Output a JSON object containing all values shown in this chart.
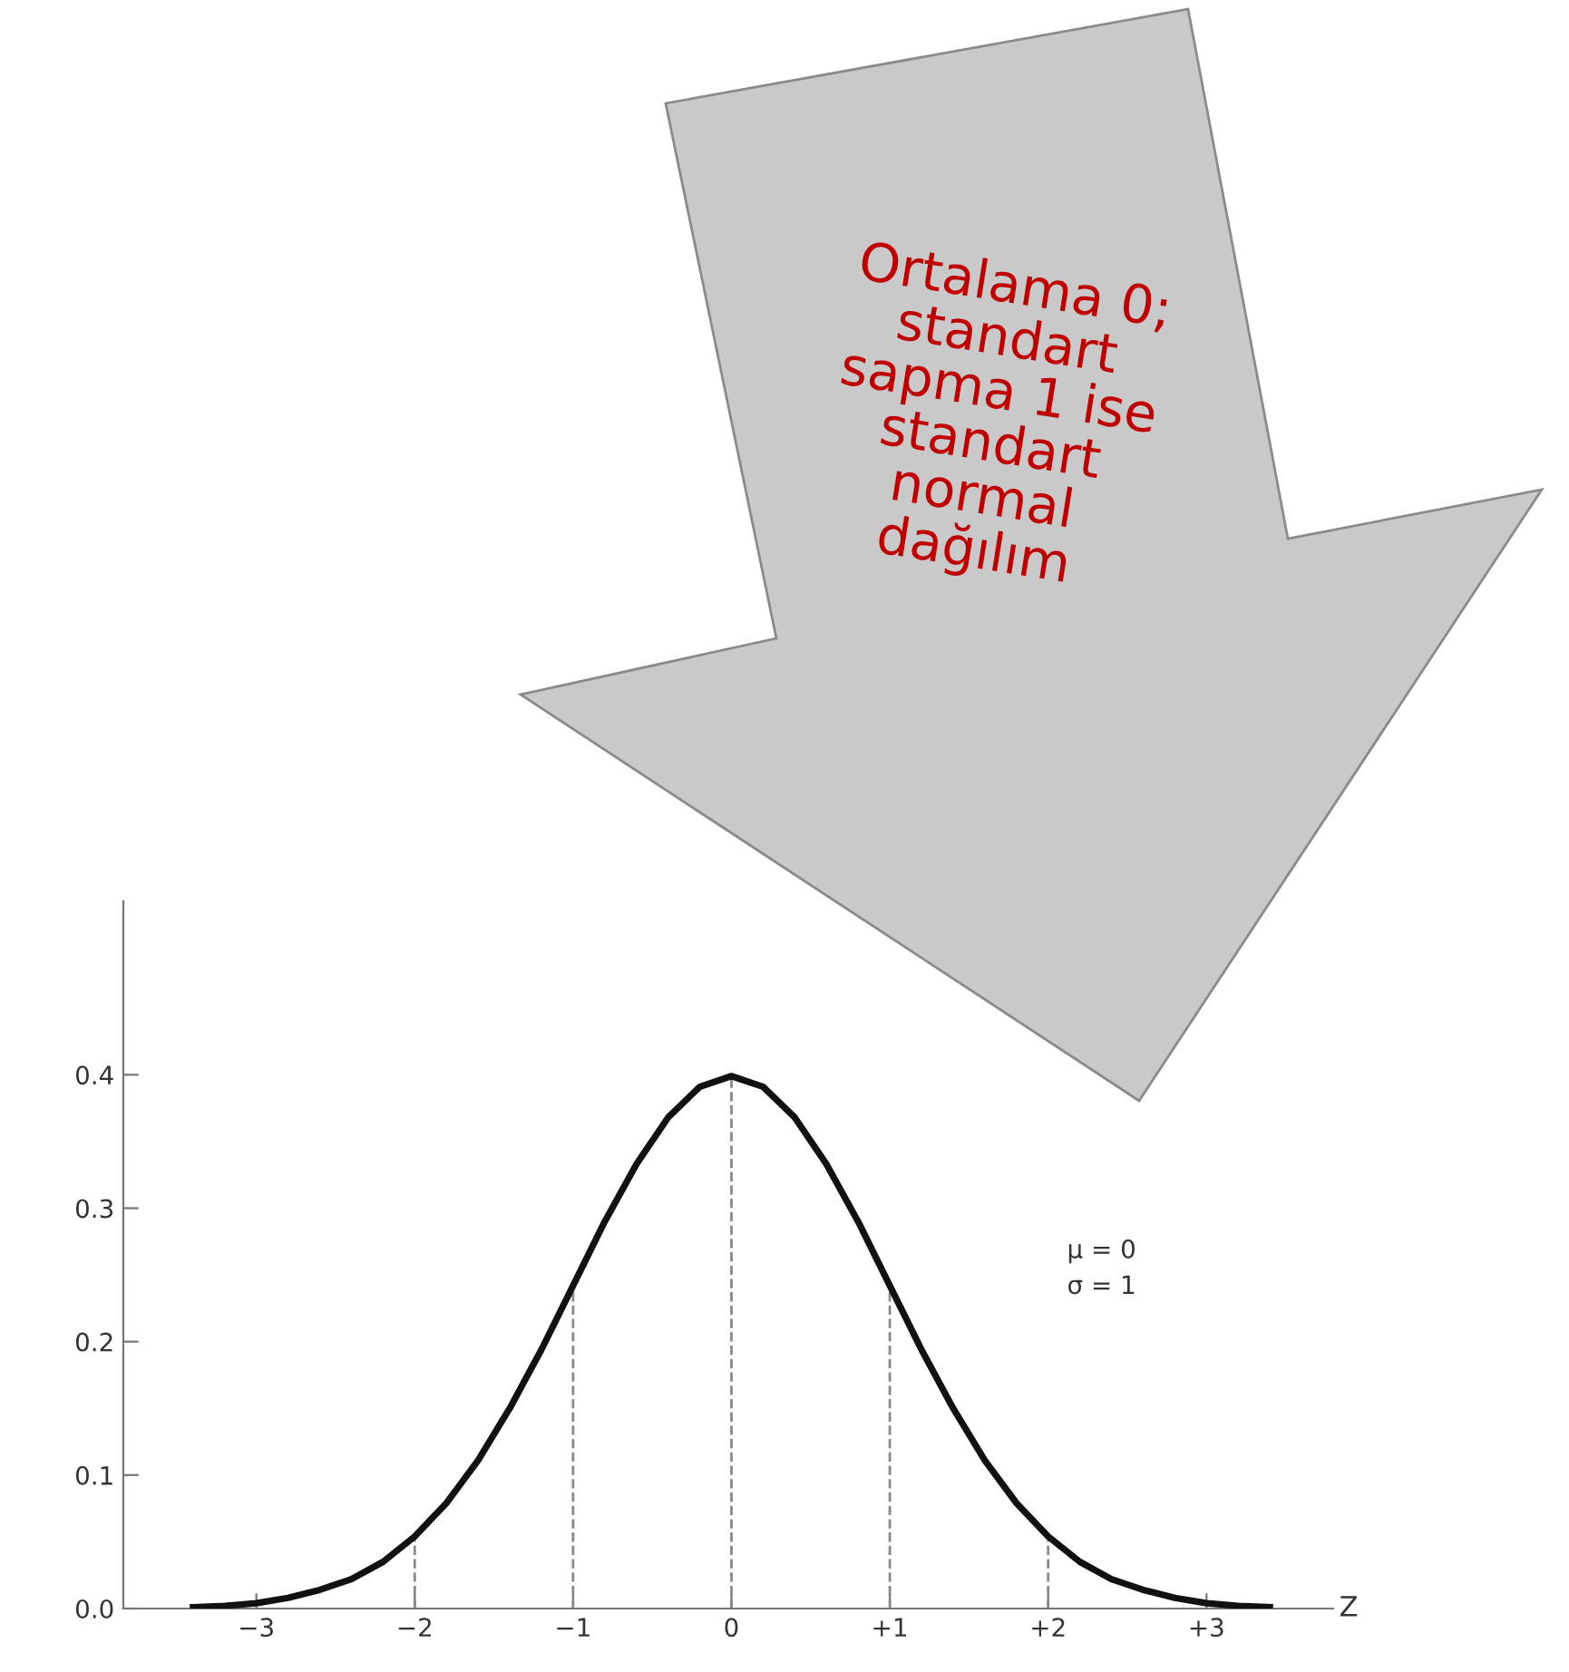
{
  "chart_data": {
    "type": "line",
    "xlabel": "Z",
    "x": [
      -3.4,
      -3.2,
      -3.0,
      -2.8,
      -2.6,
      -2.4,
      -2.2,
      -2.0,
      -1.8,
      -1.6,
      -1.4,
      -1.2,
      -1.0,
      -0.8,
      -0.6,
      -0.4,
      -0.2,
      0.0,
      0.2,
      0.4,
      0.6,
      0.8,
      1.0,
      1.2,
      1.4,
      1.6,
      1.8,
      2.0,
      2.2,
      2.4,
      2.6,
      2.8,
      3.0,
      3.2,
      3.4
    ],
    "series": [
      {
        "color": "#111111",
        "values": [
          0.001,
          0.002,
          0.004,
          0.008,
          0.014,
          0.022,
          0.035,
          0.054,
          0.079,
          0.111,
          0.15,
          0.194,
          0.242,
          0.29,
          0.333,
          0.368,
          0.391,
          0.399,
          0.391,
          0.368,
          0.333,
          0.29,
          0.242,
          0.194,
          0.15,
          0.111,
          0.079,
          0.054,
          0.035,
          0.022,
          0.014,
          0.008,
          0.004,
          0.002,
          0.001
        ]
      }
    ],
    "xlim": [
      -3.84,
      3.8
    ],
    "ylim": [
      0,
      0.53
    ],
    "xticks": [
      {
        "value": -3,
        "label": "−3"
      },
      {
        "value": -2,
        "label": "−2"
      },
      {
        "value": -1,
        "label": "−1"
      },
      0,
      {
        "value": 1,
        "label": "+1"
      },
      {
        "value": 2,
        "label": "+2"
      },
      {
        "value": 3,
        "label": "+3"
      }
    ],
    "yticks": [
      {
        "value": 0,
        "label": "0.0"
      },
      0.1,
      0.2,
      0.3,
      0.4
    ],
    "ref_lines": [
      {
        "axis": "x",
        "value": -2,
        "line_style": "dashed",
        "color": "#888888"
      },
      {
        "axis": "x",
        "value": -1,
        "line_style": "dashed",
        "color": "#888888"
      },
      {
        "axis": "x",
        "value": 0,
        "line_style": "dashed",
        "color": "#888888"
      },
      {
        "axis": "x",
        "value": 1,
        "line_style": "dashed",
        "color": "#888888"
      },
      {
        "axis": "x",
        "value": 2,
        "line_style": "dashed",
        "color": "#888888"
      }
    ],
    "annotations": [
      "μ = 0\nσ = 1",
      "Ortalama 0;\nstandart\nsapma 1 ise\nstandart\nnormal\ndağılım"
    ],
    "grid": false,
    "legend": false,
    "marker": "none",
    "line_style": "solid"
  }
}
